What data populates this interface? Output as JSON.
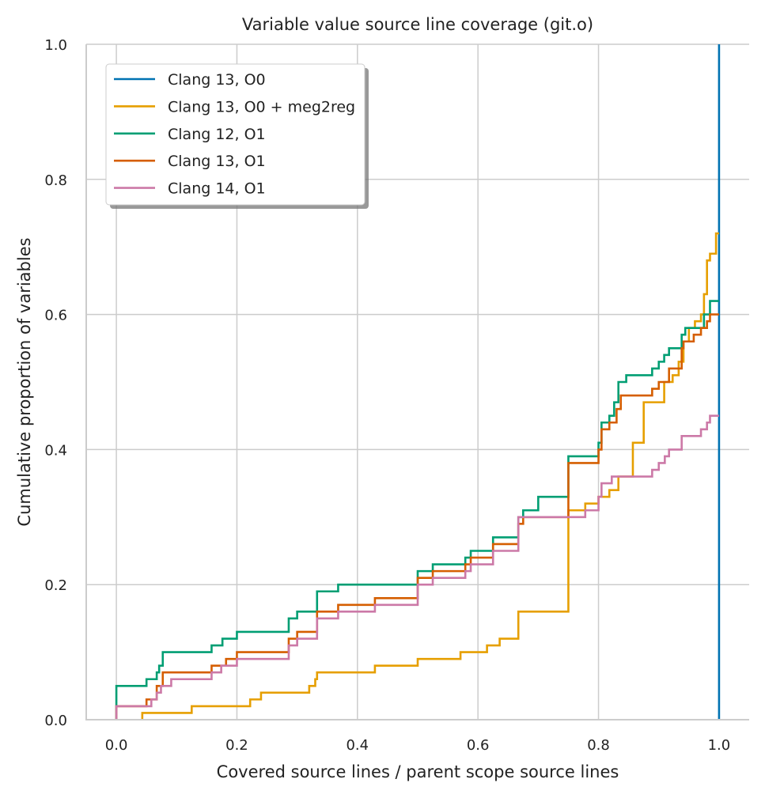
{
  "chart_data": {
    "type": "line",
    "title": "Variable value source line coverage (git.o)",
    "xlabel": "Covered source lines / parent scope source lines",
    "ylabel": "Cumulative proportion of variables",
    "xlim": [
      -0.05,
      1.05
    ],
    "ylim": [
      0,
      1
    ],
    "xticks": [
      "0.0",
      "0.2",
      "0.4",
      "0.6",
      "0.8",
      "1.0"
    ],
    "yticks": [
      "0.0",
      "0.2",
      "0.4",
      "0.6",
      "0.8",
      "1.0"
    ],
    "grid": true,
    "legend_position": "top-left",
    "series": [
      {
        "name": "Clang 13, O0",
        "color": "#0072B2",
        "step": "post",
        "points": [
          [
            1.0,
            0.0
          ],
          [
            1.0,
            1.0
          ]
        ]
      },
      {
        "name": "Clang 13, O0 + meg2reg",
        "color": "#E69F00",
        "step": "post",
        "points": [
          [
            0.043,
            0.0
          ],
          [
            0.043,
            0.01
          ],
          [
            0.125,
            0.02
          ],
          [
            0.222,
            0.03
          ],
          [
            0.24,
            0.04
          ],
          [
            0.32,
            0.05
          ],
          [
            0.33,
            0.06
          ],
          [
            0.333,
            0.07
          ],
          [
            0.429,
            0.08
          ],
          [
            0.5,
            0.09
          ],
          [
            0.571,
            0.1
          ],
          [
            0.615,
            0.11
          ],
          [
            0.636,
            0.12
          ],
          [
            0.667,
            0.16
          ],
          [
            0.75,
            0.31
          ],
          [
            0.778,
            0.32
          ],
          [
            0.8,
            0.33
          ],
          [
            0.818,
            0.34
          ],
          [
            0.833,
            0.36
          ],
          [
            0.857,
            0.41
          ],
          [
            0.875,
            0.47
          ],
          [
            0.909,
            0.5
          ],
          [
            0.923,
            0.51
          ],
          [
            0.933,
            0.53
          ],
          [
            0.941,
            0.56
          ],
          [
            0.95,
            0.58
          ],
          [
            0.96,
            0.59
          ],
          [
            0.97,
            0.6
          ],
          [
            0.975,
            0.63
          ],
          [
            0.98,
            0.68
          ],
          [
            0.985,
            0.69
          ],
          [
            0.995,
            0.72
          ],
          [
            1.0,
            0.72
          ]
        ]
      },
      {
        "name": "Clang 12, O1",
        "color": "#009E73",
        "step": "post",
        "points": [
          [
            0.0,
            0.0
          ],
          [
            0.0,
            0.05
          ],
          [
            0.05,
            0.06
          ],
          [
            0.067,
            0.07
          ],
          [
            0.071,
            0.08
          ],
          [
            0.077,
            0.1
          ],
          [
            0.158,
            0.11
          ],
          [
            0.176,
            0.12
          ],
          [
            0.2,
            0.13
          ],
          [
            0.286,
            0.15
          ],
          [
            0.3,
            0.16
          ],
          [
            0.333,
            0.19
          ],
          [
            0.368,
            0.2
          ],
          [
            0.5,
            0.22
          ],
          [
            0.525,
            0.23
          ],
          [
            0.579,
            0.24
          ],
          [
            0.588,
            0.25
          ],
          [
            0.625,
            0.27
          ],
          [
            0.667,
            0.3
          ],
          [
            0.675,
            0.31
          ],
          [
            0.7,
            0.33
          ],
          [
            0.75,
            0.39
          ],
          [
            0.8,
            0.41
          ],
          [
            0.805,
            0.44
          ],
          [
            0.818,
            0.45
          ],
          [
            0.826,
            0.47
          ],
          [
            0.833,
            0.5
          ],
          [
            0.846,
            0.51
          ],
          [
            0.889,
            0.52
          ],
          [
            0.9,
            0.53
          ],
          [
            0.909,
            0.54
          ],
          [
            0.917,
            0.55
          ],
          [
            0.938,
            0.57
          ],
          [
            0.944,
            0.58
          ],
          [
            0.975,
            0.6
          ],
          [
            0.985,
            0.62
          ],
          [
            1.0,
            0.62
          ]
        ]
      },
      {
        "name": "Clang 13, O1",
        "color": "#D55E00",
        "step": "post",
        "points": [
          [
            0.0,
            0.0
          ],
          [
            0.0,
            0.02
          ],
          [
            0.05,
            0.03
          ],
          [
            0.067,
            0.05
          ],
          [
            0.077,
            0.07
          ],
          [
            0.158,
            0.08
          ],
          [
            0.182,
            0.09
          ],
          [
            0.2,
            0.1
          ],
          [
            0.286,
            0.12
          ],
          [
            0.3,
            0.13
          ],
          [
            0.333,
            0.16
          ],
          [
            0.368,
            0.17
          ],
          [
            0.429,
            0.18
          ],
          [
            0.5,
            0.21
          ],
          [
            0.525,
            0.22
          ],
          [
            0.579,
            0.23
          ],
          [
            0.588,
            0.24
          ],
          [
            0.625,
            0.26
          ],
          [
            0.667,
            0.29
          ],
          [
            0.675,
            0.3
          ],
          [
            0.75,
            0.38
          ],
          [
            0.8,
            0.4
          ],
          [
            0.805,
            0.43
          ],
          [
            0.818,
            0.44
          ],
          [
            0.83,
            0.46
          ],
          [
            0.837,
            0.48
          ],
          [
            0.889,
            0.49
          ],
          [
            0.9,
            0.5
          ],
          [
            0.917,
            0.52
          ],
          [
            0.938,
            0.55
          ],
          [
            0.941,
            0.56
          ],
          [
            0.958,
            0.57
          ],
          [
            0.97,
            0.58
          ],
          [
            0.98,
            0.59
          ],
          [
            0.985,
            0.6
          ],
          [
            1.0,
            0.6
          ]
        ]
      },
      {
        "name": "Clang 14, O1",
        "color": "#CC79A7",
        "step": "post",
        "points": [
          [
            0.0,
            0.0
          ],
          [
            0.0,
            0.02
          ],
          [
            0.058,
            0.03
          ],
          [
            0.067,
            0.04
          ],
          [
            0.074,
            0.05
          ],
          [
            0.091,
            0.06
          ],
          [
            0.158,
            0.07
          ],
          [
            0.174,
            0.08
          ],
          [
            0.2,
            0.09
          ],
          [
            0.286,
            0.11
          ],
          [
            0.3,
            0.12
          ],
          [
            0.333,
            0.15
          ],
          [
            0.368,
            0.16
          ],
          [
            0.429,
            0.17
          ],
          [
            0.5,
            0.2
          ],
          [
            0.525,
            0.21
          ],
          [
            0.579,
            0.22
          ],
          [
            0.588,
            0.23
          ],
          [
            0.625,
            0.25
          ],
          [
            0.667,
            0.3
          ],
          [
            0.778,
            0.31
          ],
          [
            0.8,
            0.33
          ],
          [
            0.805,
            0.35
          ],
          [
            0.822,
            0.36
          ],
          [
            0.889,
            0.37
          ],
          [
            0.9,
            0.38
          ],
          [
            0.91,
            0.39
          ],
          [
            0.917,
            0.4
          ],
          [
            0.938,
            0.42
          ],
          [
            0.97,
            0.43
          ],
          [
            0.98,
            0.44
          ],
          [
            0.985,
            0.45
          ],
          [
            1.0,
            0.45
          ]
        ]
      }
    ]
  }
}
